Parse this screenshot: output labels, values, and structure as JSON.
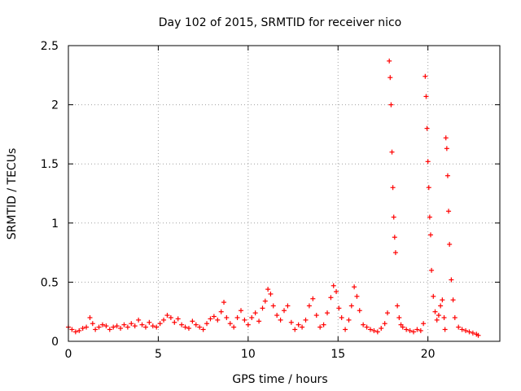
{
  "chart_data": {
    "type": "scatter",
    "title": "Day 102 of 2015, SRMTID for receiver nico",
    "xlabel": "GPS time / hours",
    "ylabel": "SRMTID / TECUs",
    "xlim": [
      0,
      24
    ],
    "ylim": [
      0,
      2.5
    ],
    "xticks": [
      0,
      5,
      10,
      15,
      20
    ],
    "xtick_labels": [
      "0",
      "5",
      "10",
      "15",
      "20"
    ],
    "yticks": [
      0,
      0.5,
      1,
      1.5,
      2,
      2.5
    ],
    "ytick_labels": [
      "0",
      "0.5",
      "1",
      "1.5",
      "2",
      "2.5"
    ],
    "grid": true,
    "marker": "+",
    "series": [
      {
        "name": "SRMTID",
        "color": "#ff0000",
        "x": [
          0.0,
          0.2,
          0.4,
          0.6,
          0.8,
          1.0,
          1.2,
          1.35,
          1.5,
          1.7,
          1.9,
          2.1,
          2.3,
          2.5,
          2.7,
          2.9,
          3.1,
          3.3,
          3.5,
          3.7,
          3.9,
          4.1,
          4.3,
          4.5,
          4.7,
          4.9,
          5.1,
          5.3,
          5.5,
          5.7,
          5.9,
          6.1,
          6.3,
          6.5,
          6.7,
          6.9,
          7.1,
          7.3,
          7.5,
          7.7,
          7.9,
          8.1,
          8.3,
          8.5,
          8.65,
          8.8,
          9.0,
          9.2,
          9.4,
          9.6,
          9.8,
          10.0,
          10.2,
          10.4,
          10.6,
          10.8,
          10.95,
          11.1,
          11.25,
          11.4,
          11.6,
          11.8,
          12.0,
          12.2,
          12.4,
          12.6,
          12.8,
          13.0,
          13.2,
          13.4,
          13.6,
          13.8,
          14.0,
          14.2,
          14.4,
          14.6,
          14.75,
          14.9,
          15.05,
          15.2,
          15.4,
          15.6,
          15.75,
          15.9,
          16.05,
          16.2,
          16.4,
          16.6,
          16.8,
          17.0,
          17.2,
          17.4,
          17.6,
          17.75,
          17.85,
          17.9,
          17.95,
          18.0,
          18.05,
          18.1,
          18.15,
          18.2,
          18.3,
          18.4,
          18.5,
          18.6,
          18.8,
          19.0,
          19.2,
          19.4,
          19.6,
          19.75,
          19.85,
          19.9,
          19.95,
          20.0,
          20.05,
          20.1,
          20.15,
          20.2,
          20.3,
          20.4,
          20.5,
          20.6,
          20.7,
          20.8,
          20.9,
          20.95,
          21.0,
          21.05,
          21.1,
          21.15,
          21.2,
          21.3,
          21.4,
          21.5,
          21.7,
          21.9,
          22.1,
          22.3,
          22.5,
          22.7,
          22.8
        ],
        "y": [
          0.12,
          0.1,
          0.08,
          0.09,
          0.11,
          0.12,
          0.2,
          0.15,
          0.1,
          0.12,
          0.14,
          0.13,
          0.1,
          0.12,
          0.13,
          0.11,
          0.14,
          0.12,
          0.15,
          0.13,
          0.18,
          0.14,
          0.12,
          0.16,
          0.13,
          0.12,
          0.15,
          0.18,
          0.22,
          0.2,
          0.16,
          0.19,
          0.14,
          0.12,
          0.11,
          0.17,
          0.14,
          0.12,
          0.1,
          0.15,
          0.19,
          0.21,
          0.18,
          0.25,
          0.33,
          0.2,
          0.15,
          0.12,
          0.2,
          0.26,
          0.18,
          0.14,
          0.2,
          0.24,
          0.17,
          0.28,
          0.34,
          0.44,
          0.4,
          0.3,
          0.22,
          0.18,
          0.26,
          0.3,
          0.16,
          0.1,
          0.14,
          0.12,
          0.18,
          0.3,
          0.36,
          0.22,
          0.12,
          0.14,
          0.24,
          0.37,
          0.47,
          0.42,
          0.28,
          0.2,
          0.1,
          0.18,
          0.3,
          0.46,
          0.38,
          0.26,
          0.14,
          0.12,
          0.1,
          0.09,
          0.08,
          0.11,
          0.15,
          0.24,
          2.37,
          2.23,
          2.0,
          1.6,
          1.3,
          1.05,
          0.88,
          0.75,
          0.3,
          0.2,
          0.14,
          0.12,
          0.1,
          0.09,
          0.08,
          0.1,
          0.09,
          0.15,
          2.24,
          2.07,
          1.8,
          1.52,
          1.3,
          1.05,
          0.9,
          0.6,
          0.38,
          0.25,
          0.18,
          0.22,
          0.3,
          0.35,
          0.2,
          0.1,
          1.72,
          1.63,
          1.4,
          1.1,
          0.82,
          0.52,
          0.35,
          0.2,
          0.12,
          0.1,
          0.09,
          0.08,
          0.07,
          0.06,
          0.05
        ]
      }
    ]
  }
}
